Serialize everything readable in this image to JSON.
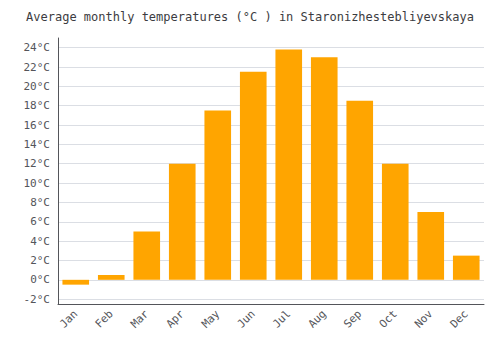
{
  "chart_data": {
    "type": "bar",
    "title": "Average monthly temperatures (°C ) in Staronizhestebliyevskaya",
    "categories": [
      "Jan",
      "Feb",
      "Mar",
      "Apr",
      "May",
      "Jun",
      "Jul",
      "Aug",
      "Sep",
      "Oct",
      "Nov",
      "Dec"
    ],
    "values": [
      -0.5,
      0.5,
      5.0,
      12.0,
      17.5,
      21.5,
      23.8,
      23.0,
      18.5,
      12.0,
      7.0,
      2.5
    ],
    "color": "#FFA500",
    "ylim": [
      -2.5,
      25
    ],
    "yticks": [
      {
        "value": -2,
        "label": "-2°C"
      },
      {
        "value": 0,
        "label": "0°C"
      },
      {
        "value": 2,
        "label": "2°C"
      },
      {
        "value": 4,
        "label": "4°C"
      },
      {
        "value": 6,
        "label": "6°C"
      },
      {
        "value": 8,
        "label": "8°C"
      },
      {
        "value": 10,
        "label": "10°C"
      },
      {
        "value": 12,
        "label": "12°C"
      },
      {
        "value": 14,
        "label": "14°C"
      },
      {
        "value": 16,
        "label": "16°C"
      },
      {
        "value": 18,
        "label": "18°C"
      },
      {
        "value": 20,
        "label": "20°C"
      },
      {
        "value": 22,
        "label": "22°C"
      },
      {
        "value": 24,
        "label": "24°C"
      }
    ],
    "grid": true
  }
}
